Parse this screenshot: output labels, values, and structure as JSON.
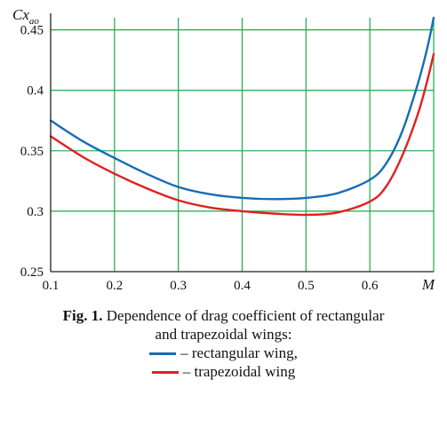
{
  "chart_data": {
    "type": "line",
    "xlabel": "M",
    "ylabel": "Cx",
    "ylabel_sub": "ao",
    "xlim": [
      0.1,
      0.7
    ],
    "ylim": [
      0.25,
      0.46
    ],
    "x_ticks": [
      "0.1",
      "0.2",
      "0.3",
      "0.4",
      "0.5",
      "0.6"
    ],
    "y_ticks": [
      "0.25",
      "0.3",
      "0.35",
      "0.4",
      "0.45"
    ],
    "grid": true,
    "grid_color": "#1fa84a",
    "series": [
      {
        "name": "rectangular wing",
        "color": "#1a6bb5",
        "x": [
          0.1,
          0.15,
          0.2,
          0.25,
          0.3,
          0.35,
          0.4,
          0.45,
          0.5,
          0.55,
          0.6,
          0.625,
          0.65,
          0.675,
          0.69,
          0.7
        ],
        "y": [
          0.375,
          0.358,
          0.344,
          0.331,
          0.32,
          0.314,
          0.311,
          0.31,
          0.311,
          0.315,
          0.326,
          0.339,
          0.365,
          0.405,
          0.435,
          0.46
        ]
      },
      {
        "name": "trapezoidal wing",
        "color": "#e02020",
        "x": [
          0.1,
          0.15,
          0.2,
          0.25,
          0.3,
          0.35,
          0.4,
          0.45,
          0.5,
          0.55,
          0.6,
          0.625,
          0.65,
          0.675,
          0.69,
          0.7
        ],
        "y": [
          0.362,
          0.345,
          0.331,
          0.319,
          0.309,
          0.303,
          0.3,
          0.298,
          0.297,
          0.299,
          0.308,
          0.32,
          0.345,
          0.38,
          0.408,
          0.43
        ]
      }
    ]
  },
  "caption": {
    "fig_label": "Fig. 1.",
    "line1": " Dependence of drag coefficient of rectangular",
    "line2": "and trapezoidal wings:",
    "legend": [
      {
        "text": "– rectangular wing,",
        "color": "#1a6bb5"
      },
      {
        "text": "– trapezoidal wing",
        "color": "#e02020"
      }
    ]
  }
}
